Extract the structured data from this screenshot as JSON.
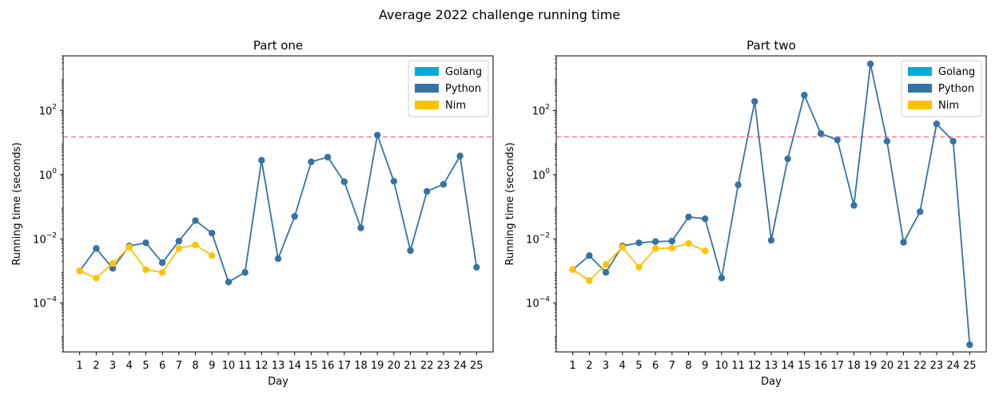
{
  "figure": {
    "title": "Average 2022 challenge running time"
  },
  "colors": {
    "golang": "#00ADD8",
    "python": "#3572A5",
    "nim": "#FFC200",
    "threshold": "#F08080"
  },
  "chart_data": [
    {
      "type": "line",
      "title": "Part one",
      "xlabel": "Day",
      "ylabel": "Running time (seconds)",
      "yscale": "log",
      "ylim": [
        3e-06,
        5000
      ],
      "xlim": [
        0,
        26
      ],
      "xticks": [
        1,
        2,
        3,
        4,
        5,
        6,
        7,
        8,
        9,
        10,
        11,
        12,
        13,
        14,
        15,
        16,
        17,
        18,
        19,
        20,
        21,
        22,
        23,
        24,
        25
      ],
      "yticks": [
        {
          "value": 0.0001,
          "base": "10",
          "exp": "−4"
        },
        {
          "value": 0.01,
          "base": "10",
          "exp": "−2"
        },
        {
          "value": 1,
          "base": "10",
          "exp": "0"
        },
        {
          "value": 100,
          "base": "10",
          "exp": "2"
        }
      ],
      "threshold": 15,
      "grid": false,
      "legend_position": "top-right",
      "legend": [
        "Golang",
        "Python",
        "Nim"
      ],
      "series": [
        {
          "name": "Golang",
          "x": [],
          "values": []
        },
        {
          "name": "Python",
          "x": [
            1,
            2,
            3,
            4,
            5,
            6,
            7,
            8,
            9,
            10,
            11,
            12,
            13,
            14,
            15,
            16,
            17,
            18,
            19,
            20,
            21,
            22,
            23,
            24,
            25
          ],
          "values": [
            0.001,
            0.005,
            0.0012,
            0.006,
            0.0075,
            0.0018,
            0.0085,
            0.037,
            0.015,
            0.00045,
            0.0009,
            2.8,
            0.0024,
            0.05,
            2.5,
            3.5,
            0.6,
            0.022,
            17,
            0.62,
            0.0043,
            0.3,
            0.5,
            3.8,
            0.0013
          ]
        },
        {
          "name": "Nim",
          "x": [
            1,
            2,
            3,
            4,
            5,
            6,
            7,
            8,
            9
          ],
          "values": [
            0.001,
            0.0006,
            0.0017,
            0.0055,
            0.0011,
            0.0009,
            0.005,
            0.0065,
            0.003
          ]
        }
      ]
    },
    {
      "type": "line",
      "title": "Part two",
      "xlabel": "Day",
      "ylabel": "Running time (seconds)",
      "yscale": "log",
      "ylim": [
        3e-06,
        5000
      ],
      "xlim": [
        0,
        26
      ],
      "xticks": [
        1,
        2,
        3,
        4,
        5,
        6,
        7,
        8,
        9,
        10,
        11,
        12,
        13,
        14,
        15,
        16,
        17,
        18,
        19,
        20,
        21,
        22,
        23,
        24,
        25
      ],
      "yticks": [
        {
          "value": 0.0001,
          "base": "10",
          "exp": "−4"
        },
        {
          "value": 0.01,
          "base": "10",
          "exp": "−2"
        },
        {
          "value": 1,
          "base": "10",
          "exp": "0"
        },
        {
          "value": 100,
          "base": "10",
          "exp": "2"
        }
      ],
      "threshold": 15,
      "grid": false,
      "legend_position": "top-right",
      "legend": [
        "Golang",
        "Python",
        "Nim"
      ],
      "series": [
        {
          "name": "Golang",
          "x": [],
          "values": []
        },
        {
          "name": "Python",
          "x": [
            1,
            2,
            3,
            4,
            5,
            6,
            7,
            8,
            9,
            10,
            11,
            12,
            13,
            14,
            15,
            16,
            17,
            18,
            19,
            20,
            21,
            22,
            23,
            24,
            25
          ],
          "values": [
            0.0011,
            0.003,
            0.0009,
            0.006,
            0.0075,
            0.0082,
            0.0085,
            0.048,
            0.042,
            0.0006,
            0.48,
            190,
            0.009,
            3.1,
            300,
            19,
            12,
            0.11,
            2800,
            11,
            0.0078,
            0.07,
            38,
            11,
            5e-06
          ]
        },
        {
          "name": "Nim",
          "x": [
            1,
            2,
            3,
            4,
            5,
            6,
            7,
            8,
            9
          ],
          "values": [
            0.0011,
            0.0005,
            0.0016,
            0.0055,
            0.0013,
            0.005,
            0.0052,
            0.0072,
            0.0042
          ]
        }
      ]
    }
  ]
}
